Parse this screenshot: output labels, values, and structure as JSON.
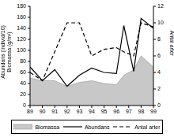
{
  "chart_data": {
    "type": "line",
    "ylabel": [
      "Abundans (individ/10)",
      "Biomassa (g/m²)"
    ],
    "y2label": "Antal arter",
    "x": [
      89,
      90,
      91,
      92,
      93,
      94,
      95,
      96,
      96.6,
      97.4,
      98,
      99
    ],
    "xlim": [
      89,
      99
    ],
    "xticks": [
      89,
      90,
      91,
      92,
      93,
      94,
      95,
      96,
      97,
      98,
      99
    ],
    "ylim": [
      0,
      180
    ],
    "yticks": [
      0,
      20,
      40,
      60,
      80,
      100,
      120,
      140,
      160,
      180
    ],
    "y2lim": [
      0,
      12
    ],
    "y2ticks": [
      0,
      2,
      4,
      6,
      8,
      10,
      12
    ],
    "grid": false,
    "legend": "bottom",
    "series": [
      {
        "name": "Biomassa",
        "type": "area",
        "color": "#c8c8c8",
        "line_style": "solid",
        "values": [
          50,
          45,
          45,
          35,
          42,
          45,
          40,
          38,
          55,
          65,
          90,
          70
        ]
      },
      {
        "name": "Abundans",
        "type": "line",
        "color": "#000000",
        "line_style": "solid",
        "values": [
          70,
          45,
          65,
          35,
          55,
          68,
          60,
          58,
          145,
          62,
          158,
          140
        ]
      },
      {
        "name": "Antal arter",
        "type": "line",
        "color": "#000000",
        "line_style": "dashed",
        "axis": "y2",
        "values": [
          4,
          3,
          6.5,
          10,
          10,
          6,
          6.8,
          7,
          6.5,
          6,
          10,
          9.5
        ]
      }
    ]
  }
}
